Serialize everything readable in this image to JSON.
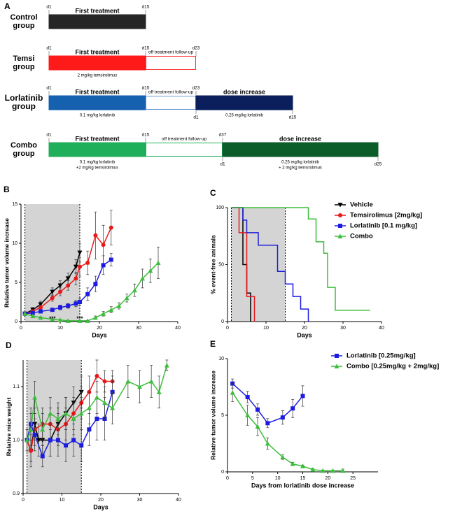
{
  "timeline": {
    "panel_label": "A",
    "groups": [
      {
        "name": "Control group",
        "top_days": [
          "d1",
          "d15"
        ],
        "segments": [
          {
            "label": "First treatment",
            "color": "#262626",
            "filled": true
          }
        ]
      },
      {
        "name": "Temsi group",
        "top_days": [
          "d1",
          "d15",
          "d23"
        ],
        "segments": [
          {
            "label": "First treatment",
            "color": "#ff1a1a",
            "filled": true,
            "dose": [
              "2 mg/kg  temsirolimus"
            ]
          },
          {
            "label": "off treatment follow-up",
            "color": "#ff3030",
            "filled": false
          }
        ]
      },
      {
        "name": "Lorlatinib group",
        "top_days": [
          "d1",
          "d15",
          "d23"
        ],
        "bottom_days": [
          "d1",
          "d15"
        ],
        "segments": [
          {
            "label": "First treatment",
            "color": "#1660b0",
            "filled": true,
            "dose": [
              "0.1 mg/kg lorlatinib"
            ]
          },
          {
            "label": "off treatment follow-up",
            "color": "#6c9bd8",
            "filled": false
          },
          {
            "label": "dose increase",
            "color": "#0b1f5c",
            "filled": true,
            "dose": [
              "0.25 mg/kg lorlatinib"
            ]
          }
        ]
      },
      {
        "name": "Combo group",
        "top_days": [
          "d1",
          "d15",
          "d37"
        ],
        "bottom_days": [
          "d1",
          "d25"
        ],
        "segments": [
          {
            "label": "First treatment",
            "color": "#1fae5a",
            "filled": true,
            "dose": [
              "0.1 mg/kg lorlatinib",
              "+2 mg/kg temsirolimus"
            ]
          },
          {
            "label": "off treatment follow-up",
            "color": "#1fae5a",
            "filled": false
          },
          {
            "label": "dose increase",
            "color": "#0b5e2a",
            "filled": true,
            "dose": [
              "0.25 mg/kg lorlatinib",
              "+ 2 mg/kg temsirolimus"
            ]
          }
        ]
      }
    ]
  },
  "chart_data": [
    {
      "type": "line",
      "panel_label": "B",
      "y_label": "Relative tumor volume increase",
      "x_label": "Days",
      "xlim": [
        0,
        40
      ],
      "xticks": [
        0,
        10,
        20,
        30,
        40
      ],
      "ylim": [
        0,
        15
      ],
      "yticks": [
        0,
        5,
        10,
        15
      ],
      "shade": [
        1,
        15
      ],
      "annotations": [
        {
          "text": "***",
          "x": 8,
          "y": 0.3
        },
        {
          "text": "***",
          "x": 15,
          "y": 0.3
        }
      ],
      "series": [
        {
          "color": "#000000",
          "marker": "triangle-down",
          "x": [
            1,
            3,
            5,
            8,
            10,
            12,
            14,
            15
          ],
          "values": [
            1.0,
            1.5,
            2.2,
            3.8,
            4.6,
            5.5,
            7.0,
            8.8
          ],
          "errors": [
            0.2,
            0.3,
            0.4,
            0.5,
            0.6,
            0.7,
            0.9,
            1.2
          ]
        },
        {
          "color": "#e8191a",
          "marker": "circle",
          "x": [
            1,
            3,
            5,
            8,
            10,
            12,
            14,
            15,
            17,
            19,
            21,
            23
          ],
          "values": [
            1.0,
            1.3,
            1.8,
            3.0,
            3.8,
            4.6,
            5.5,
            7.0,
            7.5,
            11.0,
            9.8,
            12.0
          ],
          "errors": [
            0.1,
            0.2,
            0.3,
            0.4,
            0.5,
            0.6,
            0.8,
            1.2,
            1.5,
            3.0,
            2.5,
            2.2
          ]
        },
        {
          "color": "#1c1ce0",
          "marker": "square",
          "x": [
            1,
            3,
            5,
            8,
            10,
            12,
            14,
            15,
            17,
            19,
            21,
            23
          ],
          "values": [
            1.0,
            1.1,
            1.3,
            1.5,
            1.8,
            2.0,
            2.3,
            2.5,
            3.5,
            4.8,
            7.2,
            7.9
          ],
          "errors": [
            0.1,
            0.1,
            0.2,
            0.2,
            0.3,
            0.3,
            0.4,
            0.5,
            0.8,
            1.0,
            1.2,
            0.8
          ]
        },
        {
          "color": "#3dbd3d",
          "marker": "triangle-up",
          "x": [
            1,
            3,
            5,
            8,
            10,
            12,
            15,
            17,
            19,
            21,
            23,
            25,
            27,
            29,
            31,
            33,
            35
          ],
          "values": [
            1.0,
            0.7,
            0.5,
            0.3,
            0.2,
            0.1,
            0.1,
            0.1,
            0.5,
            1.0,
            1.5,
            2.0,
            3.0,
            4.0,
            5.5,
            6.5,
            7.5
          ],
          "errors": [
            0.1,
            0.1,
            0.1,
            0.05,
            0.05,
            0.05,
            0.05,
            0.05,
            0.2,
            0.3,
            0.4,
            0.4,
            0.5,
            0.8,
            1.2,
            1.5,
            2.0
          ]
        }
      ]
    },
    {
      "type": "step",
      "panel_label": "C",
      "y_label": "% event-free animals",
      "x_label": "Days",
      "xlim": [
        0,
        40
      ],
      "xticks": [
        0,
        10,
        20,
        30,
        40
      ],
      "ylim": [
        0,
        100
      ],
      "yticks": [
        0,
        50,
        100
      ],
      "shade": [
        1,
        15
      ],
      "legend": "upper right",
      "series": [
        {
          "name": "Vehicle",
          "color": "#000000",
          "marker": "triangle-down",
          "x": [
            1,
            4,
            5,
            6
          ],
          "values": [
            100,
            50,
            25,
            0
          ]
        },
        {
          "name": "Temsirolimus [2mg/kg]",
          "color": "#e8191a",
          "marker": "circle",
          "x": [
            1,
            3,
            5,
            7
          ],
          "values": [
            100,
            78,
            22,
            0
          ]
        },
        {
          "name": "Lorlatinib [0.1 mg/kg]",
          "color": "#1c1ce0",
          "marker": "square",
          "x": [
            1,
            4,
            5,
            8,
            13,
            15,
            17,
            19,
            21
          ],
          "values": [
            100,
            89,
            78,
            67,
            44,
            33,
            22,
            11,
            0
          ]
        },
        {
          "name": "Combo",
          "color": "#3dbd3d",
          "marker": "triangle-up",
          "x": [
            1,
            21,
            23,
            25,
            26,
            28,
            37
          ],
          "values": [
            100,
            90,
            70,
            60,
            30,
            10,
            10
          ]
        }
      ]
    },
    {
      "type": "line",
      "panel_label": "D",
      "y_label": "Relative mice weight",
      "x_label": "Days",
      "xlim": [
        0,
        40
      ],
      "xticks": [
        0,
        10,
        20,
        30,
        40
      ],
      "ylim": [
        0.9,
        1.15
      ],
      "yticks": [
        0.9,
        {
          "value": 1,
          "label": "1.0"
        },
        1.1
      ],
      "shade": [
        1,
        15
      ],
      "series": [
        {
          "color": "#000000",
          "marker": "triangle-down",
          "x": [
            1,
            2,
            3,
            4,
            5,
            7,
            9,
            11,
            13,
            15
          ],
          "values": [
            1.0,
            0.98,
            1.03,
            1.0,
            1.0,
            1.0,
            1.03,
            1.05,
            1.07,
            1.09
          ],
          "errors": [
            0.02,
            0.03,
            0.03,
            0.03,
            0.03,
            0.03,
            0.03,
            0.03,
            0.03,
            0.03
          ]
        },
        {
          "color": "#e8191a",
          "marker": "circle",
          "x": [
            1,
            2,
            3,
            5,
            7,
            9,
            11,
            13,
            15,
            17,
            19,
            21,
            23
          ],
          "values": [
            1.0,
            0.98,
            1.02,
            1.03,
            1.03,
            1.02,
            1.03,
            1.05,
            1.07,
            1.09,
            1.12,
            1.11,
            1.11
          ],
          "errors": [
            0.02,
            0.02,
            0.03,
            0.03,
            0.03,
            0.03,
            0.03,
            0.03,
            0.03,
            0.03,
            0.03,
            0.02,
            0.02
          ]
        },
        {
          "color": "#1c1ce0",
          "marker": "square",
          "x": [
            1,
            2,
            3,
            5,
            7,
            9,
            11,
            13,
            15,
            17,
            19,
            21,
            23
          ],
          "values": [
            1.0,
            1.03,
            1.01,
            0.97,
            1.0,
            1.0,
            0.99,
            1.0,
            0.99,
            1.02,
            1.04,
            1.04,
            1.09
          ],
          "errors": [
            0.02,
            0.03,
            0.03,
            0.02,
            0.03,
            0.03,
            0.03,
            0.03,
            0.03,
            0.03,
            0.04,
            0.04,
            0.03
          ]
        },
        {
          "color": "#3dbd3d",
          "marker": "triangle-up",
          "x": [
            1,
            2,
            3,
            5,
            7,
            9,
            11,
            13,
            15,
            17,
            19,
            21,
            23,
            27,
            30,
            33,
            35,
            37
          ],
          "values": [
            1.0,
            1.02,
            1.08,
            1.02,
            1.05,
            1.04,
            1.05,
            1.04,
            1.05,
            1.06,
            1.08,
            1.07,
            1.06,
            1.11,
            1.1,
            1.11,
            1.09,
            1.14
          ],
          "errors": [
            0.02,
            0.03,
            0.03,
            0.03,
            0.03,
            0.03,
            0.03,
            0.03,
            0.03,
            0.03,
            0.03,
            0.03,
            0.03,
            0.03,
            0.03,
            0.03,
            0.03,
            0.01
          ]
        }
      ]
    },
    {
      "type": "line",
      "panel_label": "E",
      "y_label": "Relative tumor volume increase",
      "x_label": "Days from lorlatinib dose increase",
      "xlim": [
        0,
        30
      ],
      "xticks": [
        0,
        5,
        10,
        15,
        20,
        25
      ],
      "ylim": [
        0,
        10
      ],
      "yticks": [
        0,
        5,
        10
      ],
      "legend": "upper right",
      "series": [
        {
          "name": "Lorlatinib [0.25mg/kg]",
          "color": "#1c1ce0",
          "marker": "square",
          "x": [
            1,
            4,
            6,
            8,
            11,
            13,
            15
          ],
          "values": [
            7.8,
            6.6,
            5.5,
            4.3,
            4.8,
            5.6,
            6.7
          ],
          "errors": [
            0.4,
            0.5,
            0.5,
            0.4,
            0.6,
            0.8,
            0.9
          ]
        },
        {
          "name": "Combo [0.25mg/kg + 2mg/kg]",
          "color": "#3dbd3d",
          "marker": "triangle-up",
          "x": [
            1,
            4,
            6,
            8,
            11,
            13,
            15,
            17,
            19,
            21,
            23
          ],
          "values": [
            7.0,
            5.0,
            4.0,
            2.5,
            1.3,
            0.7,
            0.5,
            0.2,
            0.1,
            0.1,
            0.1
          ],
          "errors": [
            0.8,
            0.9,
            0.8,
            0.5,
            0.2,
            0.15,
            0.1,
            0.1,
            0.05,
            0.05,
            0.15
          ]
        }
      ]
    }
  ]
}
